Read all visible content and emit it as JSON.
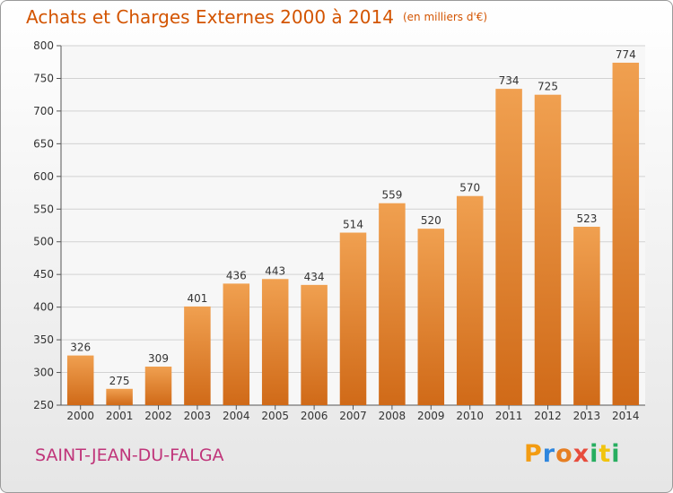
{
  "header": {
    "title": "Achats et Charges Externes 2000 à 2014",
    "unit_note": "(en milliers d'€)"
  },
  "footer": {
    "commune": "SAINT-JEAN-DU-FALGA",
    "logo_letters": [
      "P",
      "r",
      "o",
      "x",
      "i",
      "t",
      "i"
    ],
    "logo_colors": [
      "#f39c12",
      "#2e86de",
      "#e67e22",
      "#e74c3c",
      "#27ae60",
      "#f1c40f",
      "#27ae60"
    ]
  },
  "chart_data": {
    "type": "bar",
    "title": "Achats et Charges Externes 2000 à 2014",
    "xlabel": "",
    "ylabel": "",
    "categories": [
      "2000",
      "2001",
      "2002",
      "2003",
      "2004",
      "2005",
      "2006",
      "2007",
      "2008",
      "2009",
      "2010",
      "2011",
      "2012",
      "2013",
      "2014"
    ],
    "values": [
      326,
      275,
      309,
      401,
      436,
      443,
      434,
      514,
      559,
      520,
      570,
      734,
      725,
      523,
      774
    ],
    "ylim": [
      250,
      800
    ],
    "yticks": [
      250,
      300,
      350,
      400,
      450,
      500,
      550,
      600,
      650,
      700,
      750,
      800
    ],
    "grid": true,
    "bar_color": "#f0a050",
    "bar_color_dark": "#d06a18",
    "legend": "none"
  }
}
